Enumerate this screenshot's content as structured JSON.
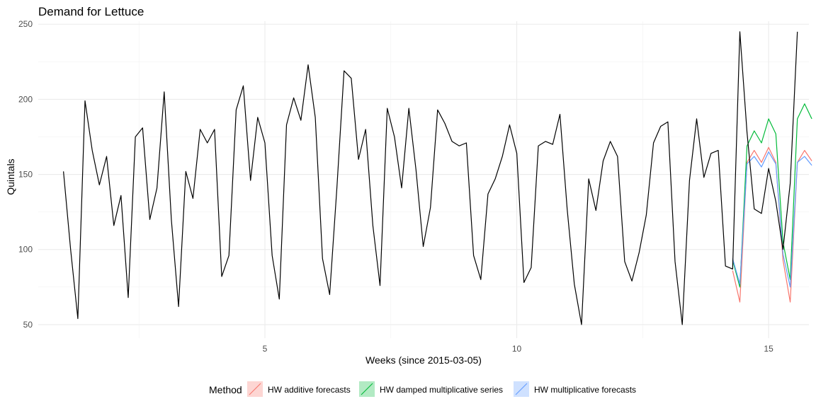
{
  "chart_data": {
    "type": "line",
    "title": "Demand for Lettuce",
    "xlabel": "Weeks (since 2015-03-05)",
    "ylabel": "Quintals",
    "xlim": [
      0.5,
      15.8
    ],
    "ylim": [
      41,
      252
    ],
    "x_ticks": [
      5,
      10,
      15
    ],
    "y_ticks": [
      50,
      100,
      150,
      200,
      250
    ],
    "grid": true,
    "legend": {
      "title": "Method",
      "position": "bottom",
      "entries": [
        {
          "label": "HW additive forecasts",
          "color": "#F8766D"
        },
        {
          "label": "HW damped multiplicative series",
          "color": "#00BA38"
        },
        {
          "label": "HW multiplicative forecasts",
          "color": "#619CFF"
        }
      ]
    },
    "actual": {
      "color": "#000000",
      "x_start": 1.0,
      "x_step": 0.1428571,
      "values": [
        152,
        100,
        54,
        199,
        166,
        143,
        162,
        116,
        136,
        68,
        175,
        181,
        120,
        141,
        205,
        120,
        62,
        152,
        134,
        180,
        171,
        180,
        82,
        96,
        193,
        209,
        146,
        188,
        171,
        96,
        67,
        183,
        201,
        186,
        223,
        188,
        94,
        70,
        141,
        219,
        214,
        160,
        180,
        116,
        76,
        194,
        175,
        141,
        194,
        153,
        102,
        128,
        193,
        184,
        172,
        169,
        171,
        96,
        80,
        137,
        147,
        162,
        183,
        164,
        78,
        88,
        169,
        172,
        170,
        190,
        127,
        77,
        50,
        147,
        126,
        159,
        172,
        162,
        92,
        79,
        98,
        123,
        171,
        182,
        185,
        92,
        50,
        146,
        187,
        148,
        164,
        166,
        89,
        87,
        245,
        178,
        127,
        124,
        154,
        132,
        100,
        144,
        245
      ]
    },
    "series": [
      {
        "name": "HW additive forecasts",
        "color": "#F8766D",
        "x_start": 14.2857,
        "x_step": 0.1428571,
        "values": [
          86,
          65,
          158,
          166,
          158,
          168,
          158,
          93,
          65,
          158,
          166,
          159
        ]
      },
      {
        "name": "HW damped multiplicative series",
        "color": "#00BA38",
        "x_start": 14.2857,
        "x_step": 0.1428571,
        "values": [
          93,
          75,
          169,
          179,
          171,
          187,
          177,
          105,
          80,
          187,
          197,
          187
        ]
      },
      {
        "name": "HW multiplicative forecasts",
        "color": "#619CFF",
        "x_start": 14.2857,
        "x_step": 0.1428571,
        "values": [
          94,
          77,
          157,
          162,
          155,
          165,
          157,
          97,
          75,
          158,
          162,
          156
        ]
      }
    ]
  }
}
